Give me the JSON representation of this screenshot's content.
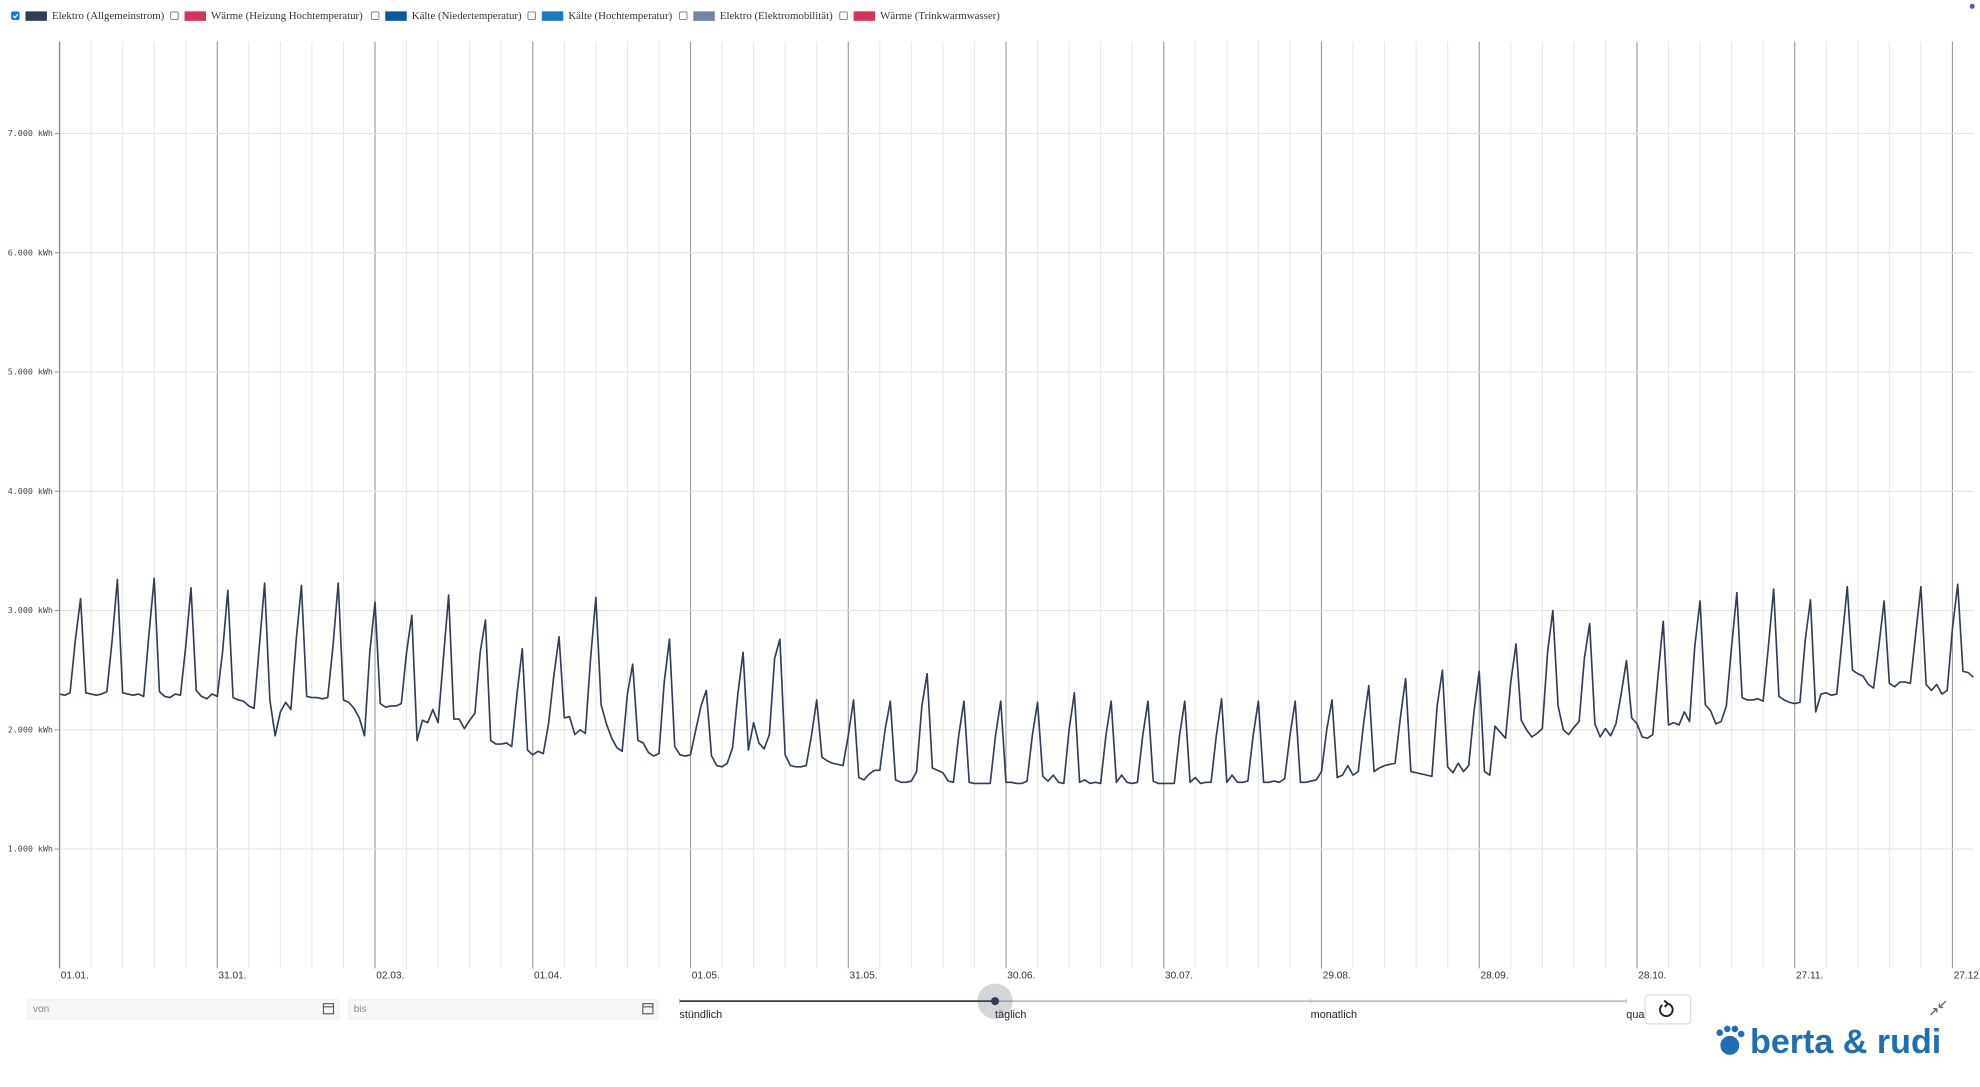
{
  "chart_data": {
    "type": "line",
    "series": [
      {
        "name": "Elektro (Allgemeinstrom)",
        "color": "#2f3e56",
        "visible": true,
        "values": [
          2300,
          2290,
          2310,
          2750,
          3100,
          2310,
          2300,
          2290,
          2300,
          2320,
          2750,
          3260,
          2310,
          2300,
          2290,
          2300,
          2280,
          2800,
          3270,
          2320,
          2280,
          2270,
          2300,
          2290,
          2700,
          3190,
          2330,
          2280,
          2260,
          2300,
          2280,
          2650,
          3170,
          2270,
          2250,
          2240,
          2200,
          2180,
          2700,
          3230,
          2250,
          1950,
          2150,
          2230,
          2170,
          2750,
          3210,
          2280,
          2270,
          2270,
          2260,
          2270,
          2700,
          3230,
          2250,
          2230,
          2180,
          2100,
          1950,
          2650,
          3070,
          2220,
          2190,
          2200,
          2200,
          2220,
          2650,
          2960,
          1910,
          2080,
          2060,
          2170,
          2060,
          2600,
          3130,
          2090,
          2090,
          2010,
          2080,
          2140,
          2650,
          2920,
          1910,
          1880,
          1880,
          1890,
          1860,
          2300,
          2680,
          1830,
          1790,
          1820,
          1800,
          2050,
          2450,
          2780,
          2100,
          2110,
          1960,
          2000,
          1970,
          2600,
          3110,
          2210,
          2050,
          1930,
          1850,
          1820,
          2300,
          2550,
          1910,
          1890,
          1810,
          1780,
          1800,
          2400,
          2760,
          1860,
          1790,
          1780,
          1790,
          2000,
          2200,
          2330,
          1780,
          1700,
          1690,
          1720,
          1850,
          2300,
          2650,
          1830,
          2060,
          1890,
          1840,
          1960,
          2600,
          2760,
          1790,
          1700,
          1690,
          1690,
          1700,
          1950,
          2250,
          1770,
          1740,
          1720,
          1710,
          1700,
          1950,
          2250,
          1600,
          1580,
          1630,
          1660,
          1660,
          2000,
          2240,
          1580,
          1560,
          1560,
          1570,
          1650,
          2200,
          2470,
          1680,
          1660,
          1640,
          1570,
          1560,
          1950,
          2240,
          1560,
          1550,
          1550,
          1550,
          1550,
          1950,
          2240,
          1560,
          1560,
          1550,
          1550,
          1570,
          1950,
          2230,
          1610,
          1570,
          1620,
          1560,
          1550,
          2000,
          2310,
          1560,
          1580,
          1550,
          1560,
          1550,
          1950,
          2240,
          1560,
          1620,
          1560,
          1550,
          1560,
          1950,
          2240,
          1570,
          1550,
          1550,
          1550,
          1550,
          1950,
          2240,
          1560,
          1600,
          1550,
          1560,
          1560,
          1950,
          2260,
          1560,
          1620,
          1560,
          1560,
          1570,
          1950,
          2240,
          1560,
          1560,
          1570,
          1560,
          1590,
          1950,
          2240,
          1560,
          1560,
          1570,
          1580,
          1650,
          2000,
          2250,
          1600,
          1620,
          1700,
          1620,
          1650,
          2050,
          2370,
          1650,
          1680,
          1700,
          1710,
          1720,
          2100,
          2430,
          1650,
          1640,
          1630,
          1620,
          1610,
          2200,
          2500,
          1690,
          1640,
          1720,
          1650,
          1700,
          2150,
          2490,
          1650,
          1620,
          2030,
          1980,
          1930,
          2400,
          2720,
          2080,
          2000,
          1940,
          1970,
          2010,
          2650,
          3000,
          2200,
          2000,
          1960,
          2020,
          2070,
          2600,
          2890,
          2050,
          1940,
          2010,
          1950,
          2050,
          2300,
          2580,
          2100,
          2050,
          1940,
          1930,
          1960,
          2450,
          2910,
          2040,
          2060,
          2040,
          2150,
          2070,
          2700,
          3080,
          2210,
          2160,
          2050,
          2070,
          2200,
          2700,
          3150,
          2270,
          2250,
          2250,
          2260,
          2240,
          2700,
          3180,
          2280,
          2250,
          2230,
          2220,
          2230,
          2750,
          3090,
          2150,
          2300,
          2310,
          2290,
          2300,
          2750,
          3200,
          2500,
          2470,
          2450,
          2380,
          2350,
          2700,
          3080,
          2390,
          2360,
          2400,
          2400,
          2390,
          2800,
          3200,
          2380,
          2330,
          2380,
          2300,
          2330,
          2850,
          3220,
          2490,
          2480,
          2440
        ]
      },
      {
        "name": "Wärme (Heizung Hochtemperatur)",
        "color": "#d3345a",
        "visible": false
      },
      {
        "name": "Kälte (Niedertemperatur)",
        "color": "#0d57a1",
        "visible": false
      },
      {
        "name": "Kälte (Hochtemperatur)",
        "color": "#1e78c2",
        "visible": false
      },
      {
        "name": "Elektro (Elektromobilität)",
        "color": "#7086a3",
        "visible": false
      },
      {
        "name": "Wärme (Trinkwarmwasser)",
        "color": "#d3345a",
        "visible": false
      }
    ],
    "categories": [
      "01.01.",
      null,
      null,
      null,
      null,
      null,
      null,
      null,
      null,
      null,
      null,
      null,
      null,
      null,
      null,
      null,
      null,
      null,
      null,
      null,
      null,
      null,
      null,
      null,
      null,
      null,
      null,
      null,
      null,
      null,
      "31.01.",
      null,
      null,
      null,
      null,
      null,
      null,
      null,
      null,
      null,
      null,
      null,
      null,
      null,
      null,
      null,
      null,
      null,
      null,
      null,
      null,
      null,
      null,
      null,
      null,
      null,
      null,
      null,
      null,
      null,
      "02.03.",
      null,
      null,
      null,
      null,
      null,
      null,
      null,
      null,
      null,
      null,
      null,
      null,
      null,
      null,
      null,
      null,
      null,
      null,
      null,
      null,
      null,
      null,
      null,
      null,
      null,
      null,
      null,
      null,
      null,
      "01.04.",
      null,
      null,
      null,
      null,
      null,
      null,
      null,
      null,
      null,
      null,
      null,
      null,
      null,
      null,
      null,
      null,
      null,
      null,
      null,
      null,
      null,
      null,
      null,
      null,
      null,
      null,
      null,
      null,
      null,
      "01.05.",
      null,
      null,
      null,
      null,
      null,
      null,
      null,
      null,
      null,
      null,
      null,
      null,
      null,
      null,
      null,
      null,
      null,
      null,
      null,
      null,
      null,
      null,
      null,
      null,
      null,
      null,
      null,
      null,
      null,
      "31.05.",
      null,
      null,
      null,
      null,
      null,
      null,
      null,
      null,
      null,
      null,
      null,
      null,
      null,
      null,
      null,
      null,
      null,
      null,
      null,
      null,
      null,
      null,
      null,
      null,
      null,
      null,
      null,
      null,
      null,
      "30.06.",
      null,
      null,
      null,
      null,
      null,
      null,
      null,
      null,
      null,
      null,
      null,
      null,
      null,
      null,
      null,
      null,
      null,
      null,
      null,
      null,
      null,
      null,
      null,
      null,
      null,
      null,
      null,
      null,
      null,
      "30.07.",
      null,
      null,
      null,
      null,
      null,
      null,
      null,
      null,
      null,
      null,
      null,
      null,
      null,
      null,
      null,
      null,
      null,
      null,
      null,
      null,
      null,
      null,
      null,
      null,
      null,
      null,
      null,
      null,
      null,
      "29.08.",
      null,
      null,
      null,
      null,
      null,
      null,
      null,
      null,
      null,
      null,
      null,
      null,
      null,
      null,
      null,
      null,
      null,
      null,
      null,
      null,
      null,
      null,
      null,
      null,
      null,
      null,
      null,
      null,
      null,
      "28.09.",
      null,
      null,
      null,
      null,
      null,
      null,
      null,
      null,
      null,
      null,
      null,
      null,
      null,
      null,
      null,
      null,
      null,
      null,
      null,
      null,
      null,
      null,
      null,
      null,
      null,
      null,
      null,
      null,
      null,
      "28.10.",
      null,
      null,
      null,
      null,
      null,
      null,
      null,
      null,
      null,
      null,
      null,
      null,
      null,
      null,
      null,
      null,
      null,
      null,
      null,
      null,
      null,
      null,
      null,
      null,
      null,
      null,
      null,
      null,
      null,
      "27.11.",
      null,
      null,
      null,
      null,
      null,
      null,
      null,
      null,
      null,
      null,
      null,
      null,
      null,
      null,
      null,
      null,
      null,
      null,
      null,
      null,
      null,
      null,
      null,
      null,
      null,
      null,
      null,
      null,
      null,
      "27.12.",
      null,
      null,
      null,
      null
    ],
    "ylim": [
      0,
      7770
    ],
    "yticks": [
      {
        "value": 1000,
        "label": "1.000 kWh"
      },
      {
        "value": 2000,
        "label": "2.000 kWh"
      },
      {
        "value": 3000,
        "label": "3.000 kWh"
      },
      {
        "value": 4000,
        "label": "4.000 kWh"
      },
      {
        "value": 5000,
        "label": "5.000 kWh"
      },
      {
        "value": 6000,
        "label": "6.000 kWh"
      },
      {
        "value": 7000,
        "label": "7.000 kWh"
      }
    ],
    "grid": true
  },
  "controls": {
    "from": "von",
    "to": "bis",
    "granularity": [
      "stündlich",
      "täglich",
      "monatlich",
      "quar"
    ],
    "selected": 1
  },
  "logo": "berta & rudi"
}
